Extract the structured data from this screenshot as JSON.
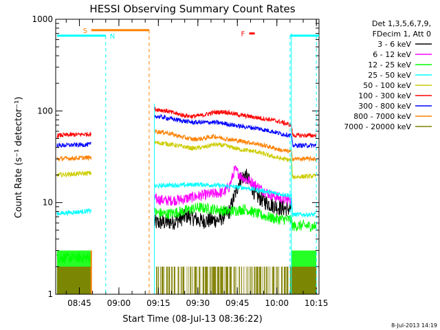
{
  "chart_data": {
    "type": "line",
    "title": "HESSI Observing Summary Count Rates",
    "xlabel": "Start Time (08-Jul-13 08:36:22)",
    "ylabel": "Count Rate (s⁻¹ detector⁻¹)",
    "yscale": "log",
    "ylim": [
      1,
      1000
    ],
    "y_ticks": [
      {
        "v": 1,
        "label": "1"
      },
      {
        "v": 10,
        "label": "10"
      },
      {
        "v": 100,
        "label": "100"
      },
      {
        "v": 1000,
        "label": "1000"
      }
    ],
    "xlim_min": [
      0,
      100
    ],
    "x_ticks": [
      {
        "m": 9,
        "label": "08:45"
      },
      {
        "m": 24,
        "label": "09:00"
      },
      {
        "m": 39,
        "label": "09:15"
      },
      {
        "m": 54,
        "label": "09:30"
      },
      {
        "m": 69,
        "label": "09:45"
      },
      {
        "m": 84,
        "label": "10:00"
      },
      {
        "m": 99,
        "label": "10:15"
      }
    ],
    "legend_header": [
      "Det 1,3,5,6,7,9,",
      "FDecim 1, Att 0"
    ],
    "legend_position": "right",
    "segments": [
      [
        0.5,
        13.5
      ],
      [
        37.5,
        89.5
      ]
    ],
    "series": [
      {
        "name": "3 - 6 keV",
        "color": "#000000",
        "points": [
          [
            37.5,
            6.0
          ],
          [
            45,
            6.2
          ],
          [
            50,
            7.2
          ],
          [
            55,
            6.3
          ],
          [
            62,
            6.5
          ],
          [
            66,
            8.0
          ],
          [
            68,
            12
          ],
          [
            70,
            18
          ],
          [
            72,
            20
          ],
          [
            74,
            16
          ],
          [
            76,
            12
          ],
          [
            78,
            11
          ],
          [
            80,
            10
          ],
          [
            82,
            9.5
          ],
          [
            84,
            9.0
          ],
          [
            86,
            8.7
          ],
          [
            89.5,
            8.5
          ]
        ]
      },
      {
        "name": "6 - 12 keV",
        "color": "#ff00ff",
        "points": [
          [
            37.5,
            11
          ],
          [
            42,
            10.5
          ],
          [
            48,
            10.8
          ],
          [
            54,
            11.8
          ],
          [
            60,
            12.5
          ],
          [
            64,
            13
          ],
          [
            66,
            15
          ],
          [
            68,
            23
          ],
          [
            70,
            20
          ],
          [
            72,
            18
          ],
          [
            74,
            17
          ],
          [
            78,
            14
          ],
          [
            82,
            12
          ],
          [
            86,
            11
          ],
          [
            89.5,
            10.5
          ]
        ]
      },
      {
        "name": "12 - 25 keV",
        "color": "#00ff00",
        "points": [
          [
            0.5,
            2.5
          ],
          [
            13.5,
            2.5
          ],
          [
            37.5,
            7.8
          ],
          [
            42,
            7.5
          ],
          [
            48,
            8.0
          ],
          [
            54,
            8.8
          ],
          [
            60,
            8.5
          ],
          [
            66,
            8.0
          ],
          [
            72,
            8.5
          ],
          [
            78,
            7.3
          ],
          [
            84,
            6.6
          ],
          [
            89.5,
            6.5
          ],
          [
            90,
            5.5
          ],
          [
            93,
            5.6
          ],
          [
            99,
            5.5
          ]
        ]
      },
      {
        "name": "25 - 50 keV",
        "color": "#00ffff",
        "points": [
          [
            0.5,
            7.6
          ],
          [
            13.5,
            8.1
          ],
          [
            37.5,
            15
          ],
          [
            42,
            15.5
          ],
          [
            48,
            15.5
          ],
          [
            54,
            15.8
          ],
          [
            60,
            15.5
          ],
          [
            66,
            15
          ],
          [
            72,
            14.5
          ],
          [
            78,
            13.5
          ],
          [
            84,
            12.5
          ],
          [
            89.5,
            12
          ],
          [
            90,
            7.4
          ],
          [
            99,
            7.4
          ]
        ]
      },
      {
        "name": "50 - 100 keV",
        "color": "#cccc00",
        "points": [
          [
            0.5,
            20
          ],
          [
            13.5,
            21
          ],
          [
            37.5,
            45
          ],
          [
            42,
            44
          ],
          [
            48,
            41
          ],
          [
            52,
            39
          ],
          [
            56,
            40
          ],
          [
            60,
            43
          ],
          [
            64,
            42
          ],
          [
            70,
            38
          ],
          [
            76,
            36
          ],
          [
            82,
            32
          ],
          [
            86,
            30
          ],
          [
            89.5,
            29
          ],
          [
            90,
            19
          ],
          [
            99,
            19.5
          ]
        ]
      },
      {
        "name": "100 - 300 keV",
        "color": "#ff0000",
        "points": [
          [
            0.5,
            54
          ],
          [
            13.5,
            56
          ],
          [
            37.5,
            105
          ],
          [
            42,
            100
          ],
          [
            48,
            90
          ],
          [
            52,
            87
          ],
          [
            56,
            90
          ],
          [
            60,
            96
          ],
          [
            64,
            98
          ],
          [
            70,
            90
          ],
          [
            76,
            85
          ],
          [
            82,
            80
          ],
          [
            86,
            75
          ],
          [
            89.5,
            70
          ],
          [
            90,
            54
          ],
          [
            99,
            54
          ]
        ]
      },
      {
        "name": "300 - 800 keV",
        "color": "#0000ff",
        "points": [
          [
            0.5,
            42
          ],
          [
            13.5,
            43
          ],
          [
            37.5,
            88
          ],
          [
            42,
            84
          ],
          [
            48,
            78
          ],
          [
            52,
            75
          ],
          [
            56,
            75
          ],
          [
            60,
            75
          ],
          [
            64,
            73
          ],
          [
            70,
            68
          ],
          [
            76,
            65
          ],
          [
            82,
            60
          ],
          [
            86,
            56
          ],
          [
            89.5,
            54
          ],
          [
            90,
            42
          ],
          [
            99,
            42
          ]
        ]
      },
      {
        "name": "800 - 7000 keV",
        "color": "#ff8000",
        "points": [
          [
            0.5,
            30
          ],
          [
            13.5,
            31
          ],
          [
            37.5,
            60
          ],
          [
            42,
            58
          ],
          [
            48,
            52
          ],
          [
            52,
            49
          ],
          [
            56,
            50
          ],
          [
            60,
            53
          ],
          [
            64,
            50
          ],
          [
            70,
            47
          ],
          [
            76,
            44
          ],
          [
            82,
            40
          ],
          [
            86,
            37
          ],
          [
            89.5,
            36
          ],
          [
            90,
            30
          ],
          [
            99,
            30
          ]
        ]
      },
      {
        "name": "7000 - 20000 keV",
        "color": "#808000",
        "points": [
          [
            0.5,
            1.6
          ],
          [
            13.5,
            1.6
          ],
          [
            37.5,
            1.6
          ],
          [
            89.5,
            1.6
          ],
          [
            90,
            1.6
          ],
          [
            99,
            1.6
          ]
        ]
      }
    ],
    "annotations": {
      "saa": {
        "label": "S",
        "color": "#ff8000",
        "start_min": 13.5,
        "end_min": 35.5
      },
      "night": {
        "label": "N",
        "color": "#00ffff",
        "start_min": 0.5,
        "end_min": 19.0,
        "resume_min": 89.0
      },
      "flare": {
        "label": "F",
        "color": "#ff0000",
        "at_min": 73.5,
        "value": 700
      }
    },
    "footer_date": "8-Jul-2013 14:19"
  }
}
